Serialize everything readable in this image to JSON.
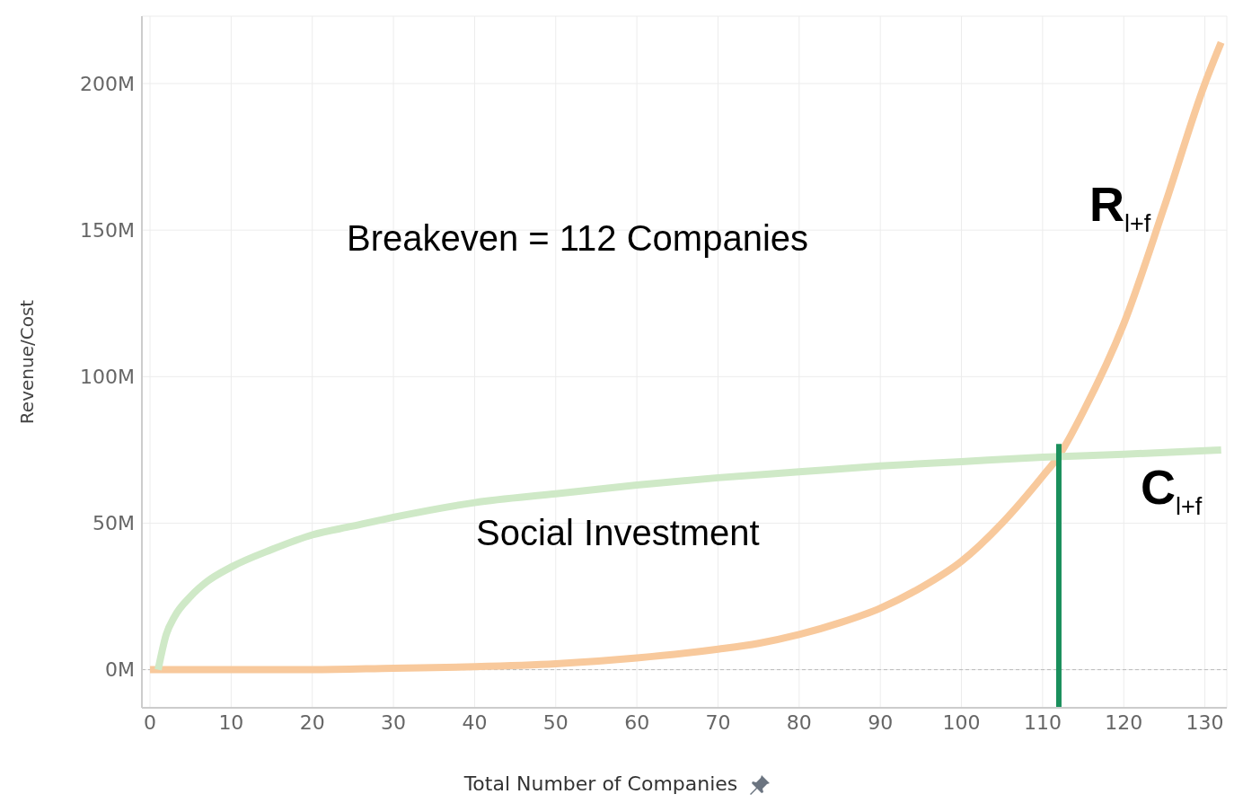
{
  "chart_data": {
    "type": "line",
    "xlabel": "Total Number of Companies",
    "ylabel": "Revenue/Cost",
    "annotations": [
      "Breakeven = 112 Companies",
      "Social Investment",
      "R$_{l+f}$",
      "C$_{l+f}$"
    ],
    "series": [
      {
        "color": "#f8c99c",
        "x": [
          0,
          10,
          20,
          30,
          40,
          50,
          60,
          70,
          75,
          80,
          85,
          90,
          95,
          100,
          105,
          110,
          112,
          115,
          120,
          125,
          130,
          132
        ],
        "values": [
          0,
          0,
          0,
          0.5,
          1,
          2,
          4,
          7,
          9,
          12,
          16,
          21,
          28,
          37,
          50,
          66,
          73,
          88,
          118,
          158,
          200,
          214
        ]
      },
      {
        "color": "#cfe9c7",
        "x": [
          1,
          2,
          3,
          5,
          7,
          10,
          15,
          20,
          25,
          30,
          40,
          50,
          60,
          70,
          80,
          90,
          100,
          110,
          120,
          132
        ],
        "values": [
          0,
          12,
          18,
          25,
          30,
          35,
          41,
          46,
          49,
          52,
          57,
          60,
          63,
          65.5,
          67.5,
          69.5,
          71,
          72.5,
          73.5,
          75
        ]
      },
      {
        "color": "#1a8f5c",
        "x": [
          112,
          112
        ],
        "values": [
          -13,
          77
        ]
      }
    ],
    "xlim": [
      -1,
      132.7
    ],
    "xticks": [
      0,
      10,
      20,
      30,
      40,
      50,
      60,
      70,
      80,
      90,
      100,
      110,
      120,
      130
    ],
    "ylim": [
      -13,
      223
    ],
    "yticks": [
      {
        "value": 0,
        "label": "0M"
      },
      {
        "value": 50,
        "label": "50M"
      },
      {
        "value": 100,
        "label": "100M"
      },
      {
        "value": 150,
        "label": "150M"
      },
      {
        "value": 200,
        "label": "200M"
      }
    ],
    "ref_lines": [
      {
        "axis": "y",
        "value": 0,
        "label": null,
        "color": "#bbbbbb",
        "line_style": "dashed"
      }
    ],
    "grid": true,
    "marker": "none",
    "line_style": "solid"
  }
}
